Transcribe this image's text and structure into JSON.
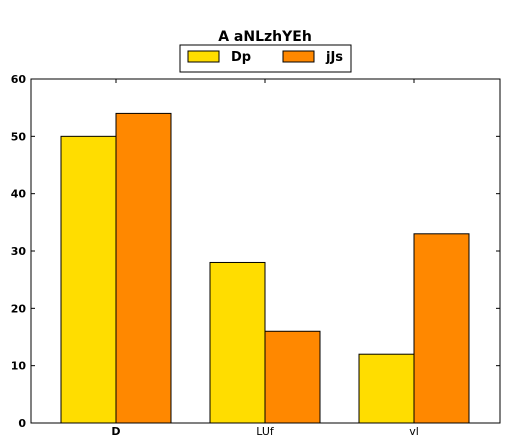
{
  "chart_data": {
    "type": "bar",
    "title": "A aNLzhYEh",
    "categories": [
      "D",
      "LUf",
      "vl"
    ],
    "series": [
      {
        "name": "Dp",
        "values": [
          50,
          28,
          12
        ],
        "color": "#FFDD00"
      },
      {
        "name": "jJs",
        "values": [
          54,
          16,
          33
        ],
        "color": "#FF8800"
      }
    ],
    "ylim": [
      0,
      60
    ],
    "yticks": [
      0,
      10,
      20,
      30,
      40,
      50,
      60
    ],
    "xlabel": "",
    "ylabel": "",
    "grid": false,
    "legend_position": "top-center"
  }
}
